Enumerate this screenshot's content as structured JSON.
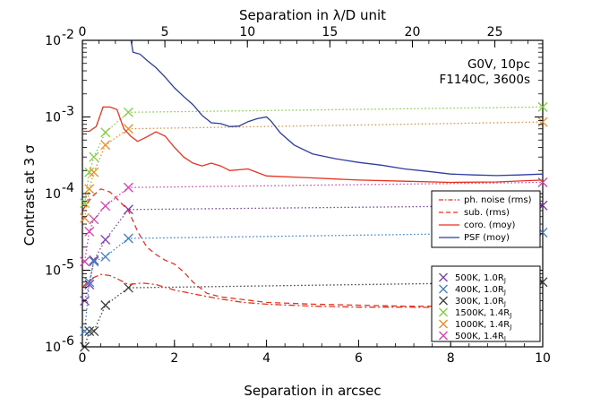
{
  "chart_data": {
    "type": "line",
    "yscale": "log",
    "ylabel": "Contrast at 3 σ",
    "xlabel": "Separation in arcsec",
    "x2label": "Separation in λ/D unit",
    "xlim": [
      0,
      10
    ],
    "ylim": [
      1e-06,
      0.01
    ],
    "x2lim": [
      0,
      27.9
    ],
    "xticks": [
      0,
      2,
      4,
      6,
      8,
      10
    ],
    "x2ticks": [
      0,
      5,
      10,
      15,
      20,
      25
    ],
    "ytick_labels": [
      {
        "value": 1e-06,
        "base": "10",
        "exp": "-6"
      },
      {
        "value": 1e-05,
        "base": "10",
        "exp": "-5"
      },
      {
        "value": 0.0001,
        "base": "10",
        "exp": "-4"
      },
      {
        "value": 0.001,
        "base": "10",
        "exp": "-3"
      },
      {
        "value": 0.01,
        "base": "10",
        "exp": "-2"
      }
    ],
    "annotations": [
      "G0V, 10pc",
      "F1140C, 3600s"
    ],
    "curve_legend": [
      {
        "label": "ph. noise (rms)",
        "color": "#e8321e",
        "dash": "dashdot"
      },
      {
        "label": "sub. (rms)",
        "color": "#e8321e",
        "dash": "dash"
      },
      {
        "label": "coro. (moy)",
        "color": "#e8321e",
        "dash": "solid"
      },
      {
        "label": "PSF (moy)",
        "color": "#2e3da0",
        "dash": "solid"
      }
    ],
    "curves": [
      {
        "name": "PSF (moy)",
        "color": "#2e3da0",
        "dash": "solid",
        "points": [
          [
            1.05,
            0.0105
          ],
          [
            1.1,
            0.007
          ],
          [
            1.25,
            0.0066
          ],
          [
            1.4,
            0.0055
          ],
          [
            1.6,
            0.0044
          ],
          [
            1.8,
            0.0033
          ],
          [
            2.0,
            0.0024
          ],
          [
            2.2,
            0.00185
          ],
          [
            2.4,
            0.00145
          ],
          [
            2.6,
            0.00105
          ],
          [
            2.8,
            0.00084
          ],
          [
            3.0,
            0.00082
          ],
          [
            3.2,
            0.00075
          ],
          [
            3.4,
            0.00076
          ],
          [
            3.6,
            0.00087
          ],
          [
            3.8,
            0.00095
          ],
          [
            4.0,
            0.001
          ],
          [
            4.1,
            0.00088
          ],
          [
            4.3,
            0.00062
          ],
          [
            4.6,
            0.00043
          ],
          [
            5.0,
            0.00033
          ],
          [
            5.5,
            0.000285
          ],
          [
            6.0,
            0.000255
          ],
          [
            6.5,
            0.000235
          ],
          [
            7.0,
            0.00021
          ],
          [
            7.5,
            0.000195
          ],
          [
            8.0,
            0.00018
          ],
          [
            8.5,
            0.000175
          ],
          [
            9.0,
            0.000172
          ],
          [
            9.5,
            0.000175
          ],
          [
            10.0,
            0.00018
          ]
        ]
      },
      {
        "name": "coro. (moy)",
        "color": "#e8321e",
        "dash": "solid",
        "points": [
          [
            0.0,
            0.00065
          ],
          [
            0.15,
            0.00065
          ],
          [
            0.3,
            0.00075
          ],
          [
            0.45,
            0.00135
          ],
          [
            0.6,
            0.00135
          ],
          [
            0.75,
            0.00125
          ],
          [
            0.9,
            0.0007
          ],
          [
            1.05,
            0.00056
          ],
          [
            1.2,
            0.00048
          ],
          [
            1.4,
            0.00055
          ],
          [
            1.6,
            0.00064
          ],
          [
            1.8,
            0.00056
          ],
          [
            2.0,
            0.0004
          ],
          [
            2.2,
            0.0003
          ],
          [
            2.4,
            0.00025
          ],
          [
            2.6,
            0.00023
          ],
          [
            2.8,
            0.00025
          ],
          [
            3.0,
            0.00023
          ],
          [
            3.2,
            0.0002
          ],
          [
            3.6,
            0.00021
          ],
          [
            4.0,
            0.00017
          ],
          [
            5.0,
            0.00016
          ],
          [
            6.0,
            0.00015
          ],
          [
            7.0,
            0.000145
          ],
          [
            8.0,
            0.00014
          ],
          [
            9.0,
            0.000142
          ],
          [
            10.0,
            0.00015
          ]
        ]
      },
      {
        "name": "sub. (rms)",
        "color": "#e8321e",
        "dash": "dash",
        "points": [
          [
            0.0,
            6e-05
          ],
          [
            0.2,
            9e-05
          ],
          [
            0.4,
            0.000115
          ],
          [
            0.6,
            0.000105
          ],
          [
            0.8,
            8e-05
          ],
          [
            1.0,
            6e-05
          ],
          [
            1.2,
            3.2e-05
          ],
          [
            1.4,
            2e-05
          ],
          [
            1.6,
            1.6e-05
          ],
          [
            1.8,
            1.35e-05
          ],
          [
            2.0,
            1.2e-05
          ],
          [
            2.2,
            9.5e-06
          ],
          [
            2.4,
            7e-06
          ],
          [
            2.7,
            5e-06
          ],
          [
            3.0,
            4.5e-06
          ],
          [
            3.4,
            4.2e-06
          ],
          [
            4.0,
            3.8e-06
          ],
          [
            5.0,
            3.6e-06
          ],
          [
            6.0,
            3.5e-06
          ],
          [
            7.0,
            3.4e-06
          ],
          [
            8.0,
            3.4e-06
          ],
          [
            9.0,
            3.5e-06
          ]
        ]
      },
      {
        "name": "ph. noise (rms)",
        "color": "#e8321e",
        "dash": "dashdot",
        "points": [
          [
            0.0,
            6e-06
          ],
          [
            0.2,
            7.8e-06
          ],
          [
            0.4,
            8.8e-06
          ],
          [
            0.6,
            8.5e-06
          ],
          [
            0.8,
            7.5e-06
          ],
          [
            1.0,
            6.5e-06
          ],
          [
            1.3,
            6.8e-06
          ],
          [
            1.6,
            6.5e-06
          ],
          [
            2.0,
            5.5e-06
          ],
          [
            2.5,
            4.8e-06
          ],
          [
            3.0,
            4.2e-06
          ],
          [
            3.5,
            3.8e-06
          ],
          [
            4.0,
            3.6e-06
          ],
          [
            5.0,
            3.4e-06
          ],
          [
            6.0,
            3.3e-06
          ],
          [
            7.0,
            3.3e-06
          ],
          [
            8.0,
            3.25e-06
          ],
          [
            9.0,
            3.3e-06
          ]
        ]
      }
    ],
    "planets": [
      {
        "label_main": "500K, 1.0R",
        "label_sub": "J",
        "color": "#7e3ba8",
        "points": [
          [
            0.05,
            4e-06
          ],
          [
            0.15,
            6.5e-06
          ],
          [
            0.25,
            1.35e-05
          ],
          [
            0.5,
            2.5e-05
          ],
          [
            1.0,
            6.2e-05
          ],
          [
            10.0,
            7e-05
          ]
        ]
      },
      {
        "label_main": "400K, 1.0R",
        "label_sub": "J",
        "color": "#3d7fc9",
        "points": [
          [
            0.05,
            1.6e-06
          ],
          [
            0.15,
            7e-06
          ],
          [
            0.25,
            1.3e-05
          ],
          [
            0.5,
            1.5e-05
          ],
          [
            1.0,
            2.6e-05
          ],
          [
            10.0,
            3.1e-05
          ]
        ]
      },
      {
        "label_main": "300K, 1.0R",
        "label_sub": "J",
        "color": "#3f3f3f",
        "points": [
          [
            0.05,
            1e-06
          ],
          [
            0.15,
            1.6e-06
          ],
          [
            0.25,
            1.6e-06
          ],
          [
            0.5,
            3.5e-06
          ],
          [
            1.0,
            5.9e-06
          ],
          [
            10.0,
            7e-06
          ]
        ]
      },
      {
        "label_main": "1500K, 1.4R",
        "label_sub": "J",
        "color": "#7fcf3a",
        "points": [
          [
            0.05,
            7.5e-05
          ],
          [
            0.15,
            0.00019
          ],
          [
            0.25,
            0.0003
          ],
          [
            0.5,
            0.00063
          ],
          [
            1.0,
            0.00115
          ],
          [
            10.0,
            0.00135
          ]
        ]
      },
      {
        "label_main": "1000K, 1.4R",
        "label_sub": "J",
        "color": "#f08a1e",
        "points": [
          [
            0.05,
            4.8e-05
          ],
          [
            0.15,
            0.000115
          ],
          [
            0.25,
            0.00019
          ],
          [
            0.5,
            0.00043
          ],
          [
            1.0,
            0.0007
          ],
          [
            10.0,
            0.00086
          ]
        ]
      },
      {
        "label_main": "500K, 1.4R",
        "label_sub": "J",
        "color": "#d83fb0",
        "points": [
          [
            0.05,
            1.3e-05
          ],
          [
            0.15,
            3.2e-05
          ],
          [
            0.25,
            4.6e-05
          ],
          [
            0.5,
            6.9e-05
          ],
          [
            1.0,
            0.00012
          ],
          [
            10.0,
            0.00014
          ]
        ]
      }
    ]
  }
}
